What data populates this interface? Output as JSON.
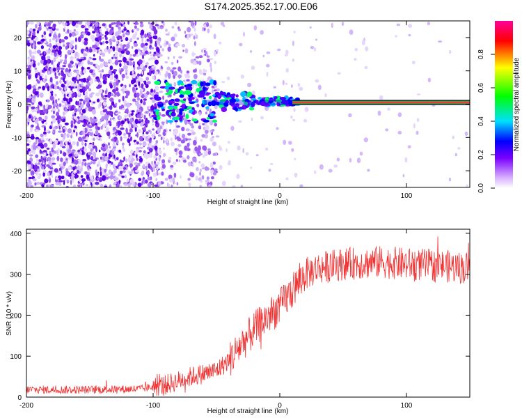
{
  "title": "S174.2025.352.17.00.E06",
  "chart_data": [
    {
      "type": "heatmap",
      "title": "S174.2025.352.17.00.E06",
      "xlabel": "Height of straight line (km)",
      "ylabel": "Frequency (Hz)",
      "xlim": [
        -200,
        150
      ],
      "ylim": [
        -25,
        25
      ],
      "xticks": [
        -200,
        -100,
        0,
        100
      ],
      "yticks": [
        -20,
        -10,
        0,
        10,
        20
      ],
      "colorbar": {
        "label": "Normalized spectral amplitude",
        "range": [
          0.0,
          1.0
        ],
        "ticks": [
          "0.0",
          "0.2",
          "0.4",
          "0.6",
          "0.8"
        ],
        "colors": [
          "#ffffff",
          "#d9b3ff",
          "#7a00ff",
          "#0000ff",
          "#00e0ff",
          "#00ff00",
          "#ffff00",
          "#ff0000",
          "#ff00aa"
        ]
      },
      "signal_line": {
        "frequency": 0.5,
        "from_x": 10,
        "to_x": 150
      },
      "colors": {
        "noise": "#7a2be8",
        "line_core": "#e83a3a",
        "line_edge": "#00cc44"
      }
    },
    {
      "type": "line",
      "xlabel": "Height of straight line (km)",
      "ylabel": "SNR (10 * v/v)",
      "xlim": [
        -200,
        150
      ],
      "ylim": [
        0,
        410
      ],
      "xticks": [
        -200,
        -100,
        0,
        100
      ],
      "yticks": [
        0,
        100,
        200,
        300,
        400
      ],
      "series": [
        {
          "name": "SNR",
          "color": "#f03232",
          "trend_x": [
            -200,
            -150,
            -110,
            -90,
            -70,
            -50,
            -40,
            -30,
            -20,
            -10,
            0,
            10,
            20,
            30,
            50,
            80,
            100,
            130,
            150
          ],
          "trend_y": [
            18,
            18,
            20,
            30,
            50,
            65,
            90,
            130,
            165,
            195,
            220,
            260,
            300,
            315,
            325,
            330,
            325,
            320,
            315
          ]
        }
      ]
    }
  ]
}
